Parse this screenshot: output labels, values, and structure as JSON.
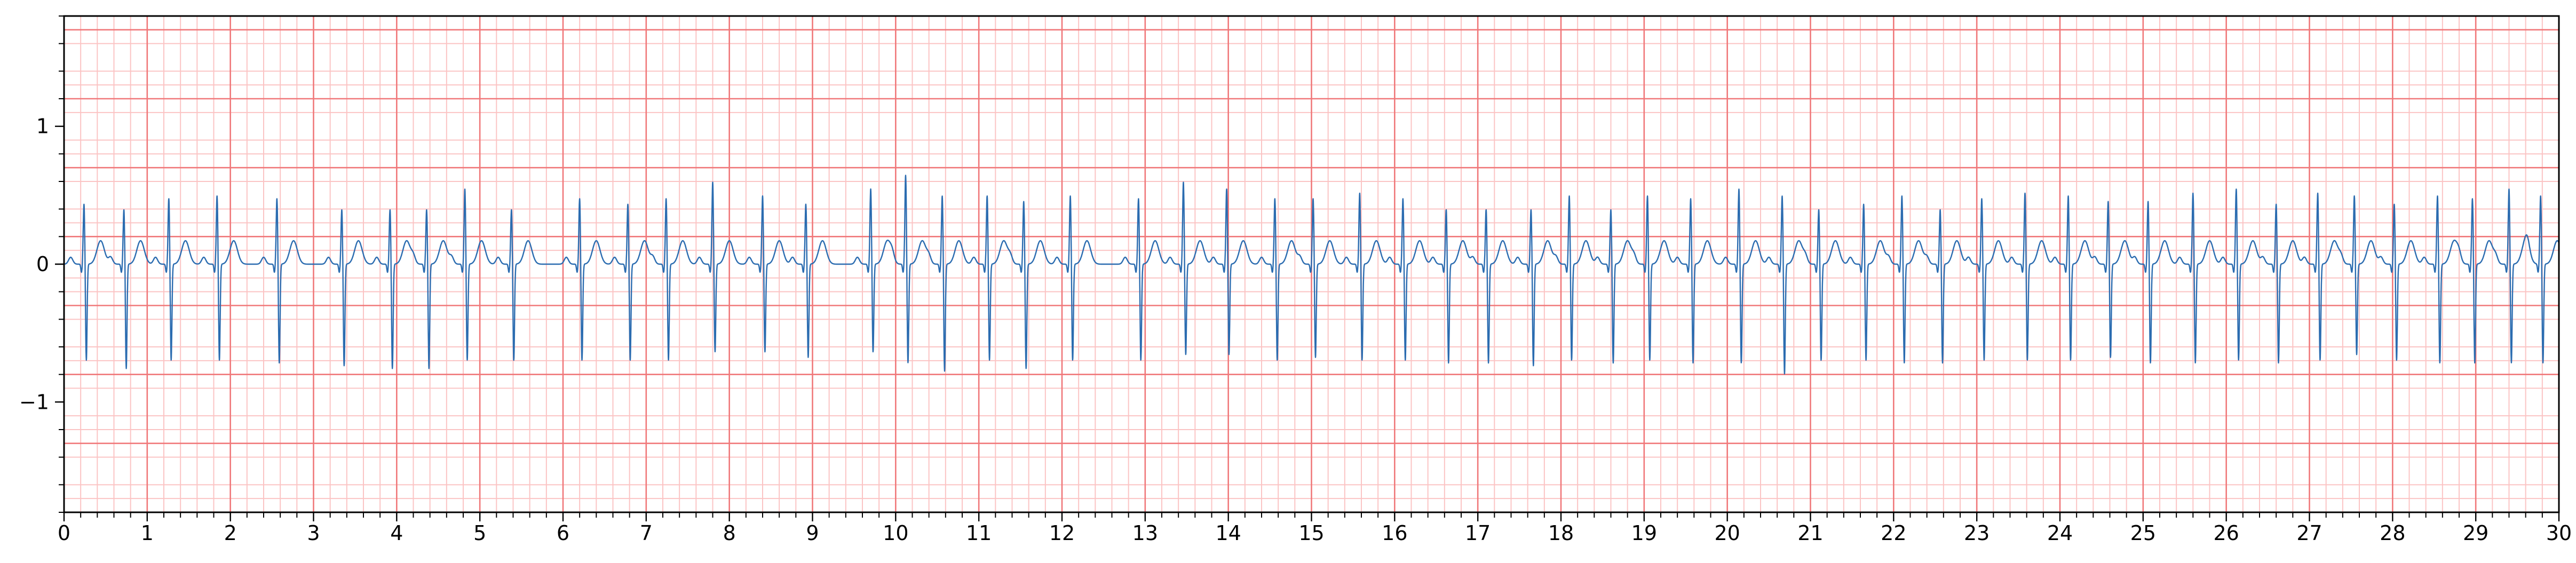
{
  "chart_data": {
    "type": "line",
    "title": "",
    "xlabel": "",
    "ylabel": "",
    "xlim": [
      0,
      30
    ],
    "ylim": [
      -1.8,
      1.8
    ],
    "x_ticks": [
      "0",
      "1",
      "2",
      "3",
      "4",
      "5",
      "6",
      "7",
      "8",
      "9",
      "10",
      "11",
      "12",
      "13",
      "14",
      "15",
      "16",
      "17",
      "18",
      "19",
      "20",
      "21",
      "22",
      "23",
      "24",
      "25",
      "26",
      "27",
      "28",
      "29",
      "30"
    ],
    "y_ticks": [
      {
        "value": 1,
        "label": "1"
      },
      {
        "value": 0,
        "label": "0"
      },
      {
        "value": -1,
        "label": "−1"
      }
    ],
    "grid": {
      "major_x": 1,
      "minor_x": 0.2,
      "major_y": 0.5,
      "minor_y": 0.1
    },
    "colors": {
      "major_grid": "#f0787a",
      "minor_grid": "#fbc4c4",
      "trace": "#2b6cb0",
      "axes": "#000000"
    },
    "series": [
      {
        "sampling": "single-lead ECG trace with narrow QRS complexes at about 2.4 beats per second",
        "beat_times": [
          0.24,
          0.72,
          1.26,
          1.84,
          2.56,
          3.34,
          3.92,
          4.36,
          4.82,
          5.38,
          6.2,
          6.78,
          7.24,
          7.8,
          8.4,
          8.92,
          9.7,
          10.12,
          10.56,
          11.1,
          11.54,
          12.1,
          12.92,
          13.46,
          13.98,
          14.56,
          15.02,
          15.58,
          16.1,
          16.62,
          17.1,
          17.64,
          18.1,
          18.6,
          19.04,
          19.56,
          20.14,
          20.66,
          21.1,
          21.64,
          22.1,
          22.56,
          23.06,
          23.58,
          24.1,
          24.58,
          25.06,
          25.6,
          26.12,
          26.6,
          27.1,
          27.54,
          28.02,
          28.54,
          28.96,
          29.4,
          29.78
        ],
        "r_peak_amplitudes": [
          0.44,
          0.4,
          0.48,
          0.5,
          0.48,
          0.4,
          0.4,
          0.4,
          0.55,
          0.4,
          0.48,
          0.44,
          0.48,
          0.6,
          0.5,
          0.44,
          0.55,
          0.65,
          0.5,
          0.5,
          0.46,
          0.5,
          0.48,
          0.6,
          0.55,
          0.48,
          0.48,
          0.52,
          0.48,
          0.4,
          0.4,
          0.4,
          0.5,
          0.4,
          0.5,
          0.48,
          0.55,
          0.5,
          0.4,
          0.44,
          0.5,
          0.4,
          0.48,
          0.52,
          0.5,
          0.46,
          0.46,
          0.52,
          0.55,
          0.44,
          0.52,
          0.5,
          0.44,
          0.5,
          0.48,
          0.55,
          0.5
        ],
        "s_trough_amplitudes": [
          -0.7,
          -0.76,
          -0.7,
          -0.7,
          -0.72,
          -0.74,
          -0.76,
          -0.76,
          -0.7,
          -0.7,
          -0.7,
          -0.7,
          -0.7,
          -0.64,
          -0.64,
          -0.68,
          -0.64,
          -0.72,
          -0.78,
          -0.7,
          -0.76,
          -0.7,
          -0.7,
          -0.66,
          -0.66,
          -0.7,
          -0.68,
          -0.7,
          -0.7,
          -0.72,
          -0.72,
          -0.74,
          -0.7,
          -0.72,
          -0.7,
          -0.72,
          -0.72,
          -0.8,
          -0.7,
          -0.7,
          -0.72,
          -0.72,
          -0.7,
          -0.7,
          -0.7,
          -0.68,
          -0.72,
          -0.72,
          -0.7,
          -0.72,
          -0.7,
          -0.66,
          -0.7,
          -0.72,
          -0.72,
          -0.72,
          -0.72
        ],
        "t_wave_amplitude": 0.17,
        "baseline": 0
      }
    ]
  }
}
